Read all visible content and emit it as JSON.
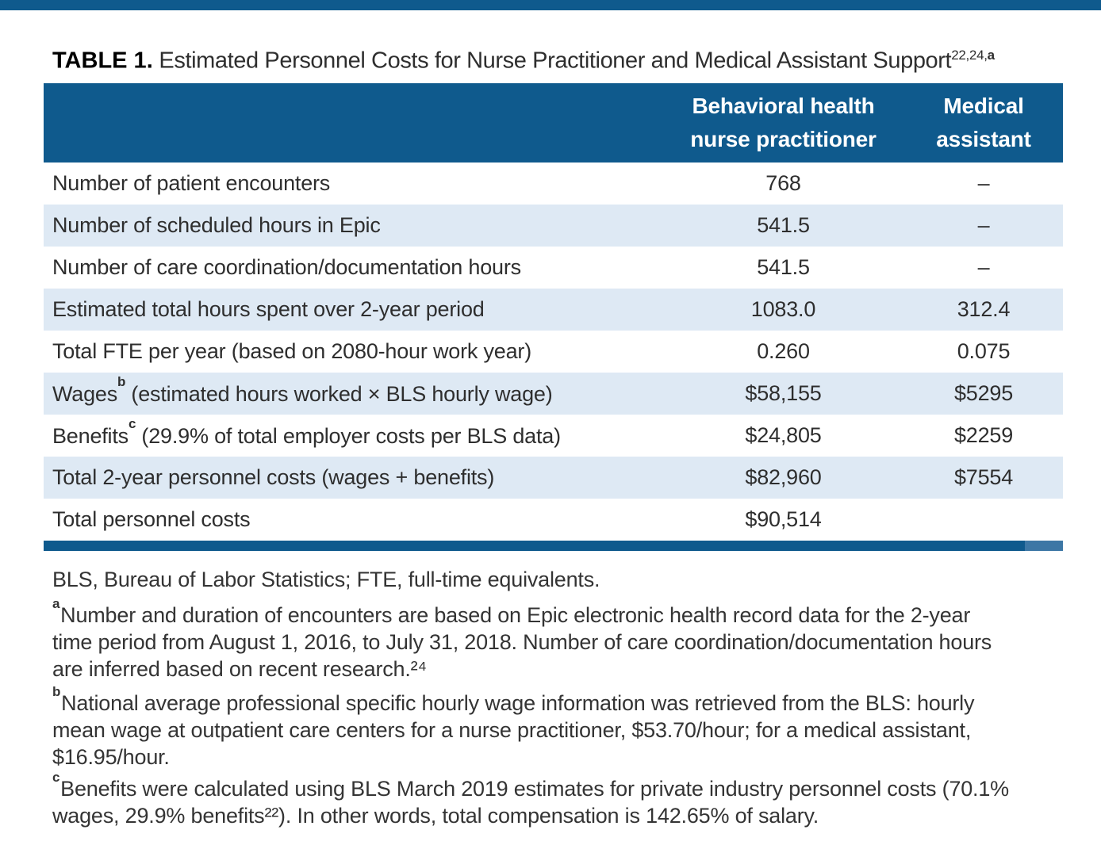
{
  "title": {
    "label": "TABLE 1.",
    "text": " Estimated Personnel Costs for Nurse Practitioner and Medical Assistant Support",
    "sup_nums": "22,24,",
    "sup_letter": "a"
  },
  "table": {
    "header": {
      "np_line1": "Behavioral health",
      "np_line2": "nurse practitioner",
      "ma_line1": "Medical",
      "ma_line2": "assistant"
    },
    "rows": [
      {
        "label": "Number of patient encounters",
        "np": "768",
        "ma": "–"
      },
      {
        "label": "Number of scheduled hours in Epic",
        "np": "541.5",
        "ma": "–"
      },
      {
        "label": "Number of care coordination/documentation hours",
        "np": "541.5",
        "ma": "–"
      },
      {
        "label": "Estimated total hours spent over 2-year period",
        "np": "1083.0",
        "ma": "312.4"
      },
      {
        "label": "Total FTE per year (based on 2080-hour work year)",
        "np": "0.260",
        "ma": "0.075"
      },
      {
        "label": "Wages",
        "sup": "b",
        "label_rest": " (estimated hours worked × BLS hourly wage)",
        "np": "$58,155",
        "ma": "$5295"
      },
      {
        "label": "Benefits",
        "sup": "c",
        "label_rest": " (29.9% of total employer costs per BLS data)",
        "np": "$24,805",
        "ma": "$2259"
      },
      {
        "label": "Total 2-year personnel costs (wages + benefits)",
        "np": "$82,960",
        "ma": "$7554"
      },
      {
        "label": "Total personnel costs",
        "np": "$90,514",
        "ma": ""
      }
    ]
  },
  "footnotes": {
    "abbrev": "BLS, Bureau of Labor Statistics; FTE, full-time equivalents.",
    "a": {
      "sup": "a",
      "lines": [
        "Number and duration of encounters are based on Epic electronic health record data for the 2-year",
        "time period from August 1, 2016, to July 31, 2018. Number of care coordination/documentation hours",
        "are inferred based on recent research.²⁴"
      ]
    },
    "b": {
      "sup": "b",
      "lines": [
        "National average professional specific hourly wage information was retrieved from the BLS: hourly",
        "mean wage at outpatient care centers for a nurse practitioner, $53.70/hour; for a medical assistant,",
        "$16.95/hour."
      ]
    },
    "c": {
      "sup": "c",
      "lines": [
        "Benefits were calculated using BLS March 2019 estimates for private industry personnel costs (70.1%",
        "wages, 29.9% benefits²²). In other words, total compensation is 142.65% of salary."
      ]
    }
  },
  "colors": {
    "navy": "#0f5a8d",
    "row_alt": "#dee9f4",
    "rule_accent": "#3d77a5",
    "header_text": "#ffffff",
    "body_text": "#2e2e2e"
  },
  "chart_data": {
    "type": "table",
    "title": "TABLE 1. Estimated Personnel Costs for Nurse Practitioner and Medical Assistant Support",
    "columns": [
      "",
      "Behavioral health nurse practitioner",
      "Medical assistant"
    ],
    "rows": [
      [
        "Number of patient encounters",
        "768",
        "–"
      ],
      [
        "Number of scheduled hours in Epic",
        "541.5",
        "–"
      ],
      [
        "Number of care coordination/documentation hours",
        "541.5",
        "–"
      ],
      [
        "Estimated total hours spent over 2-year period",
        "1083.0",
        "312.4"
      ],
      [
        "Total FTE per year (based on 2080-hour work year)",
        "0.260",
        "0.075"
      ],
      [
        "Wages (estimated hours worked × BLS hourly wage)",
        "$58,155",
        "$5295"
      ],
      [
        "Benefits (29.9% of total employer costs per BLS data)",
        "$24,805",
        "$2259"
      ],
      [
        "Total 2-year personnel costs (wages + benefits)",
        "$82,960",
        "$7554"
      ],
      [
        "Total personnel costs",
        "$90,514",
        ""
      ]
    ]
  }
}
